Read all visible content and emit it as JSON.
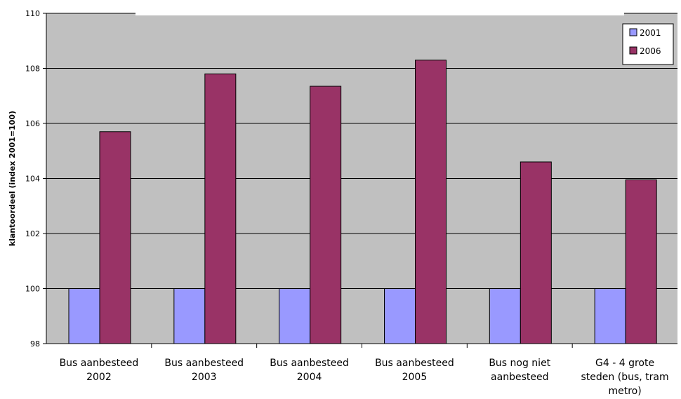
{
  "chart_data": {
    "type": "bar",
    "title": "",
    "xlabel": "",
    "ylabel": "klantoordeel (index 2001=100)",
    "ylim": [
      98,
      110
    ],
    "yticks": [
      98,
      100,
      102,
      104,
      106,
      108,
      110
    ],
    "grid": true,
    "legend": "top-right",
    "categories": [
      [
        "Bus aanbesteed",
        "2002"
      ],
      [
        "Bus aanbesteed",
        "2003"
      ],
      [
        "Bus aanbesteed",
        "2004"
      ],
      [
        "Bus aanbesteed",
        "2005"
      ],
      [
        "Bus nog niet",
        "aanbesteed"
      ],
      [
        "G4 - 4 grote",
        "steden (bus, tram",
        "metro)"
      ]
    ],
    "series": [
      {
        "name": "2001",
        "color": "#9999ff",
        "values": [
          100,
          100,
          100,
          100,
          100,
          100
        ]
      },
      {
        "name": "2006",
        "color": "#993366",
        "values": [
          105.7,
          107.8,
          107.35,
          108.3,
          104.6,
          103.95
        ]
      }
    ],
    "plot_color": "#c0c0c0"
  }
}
